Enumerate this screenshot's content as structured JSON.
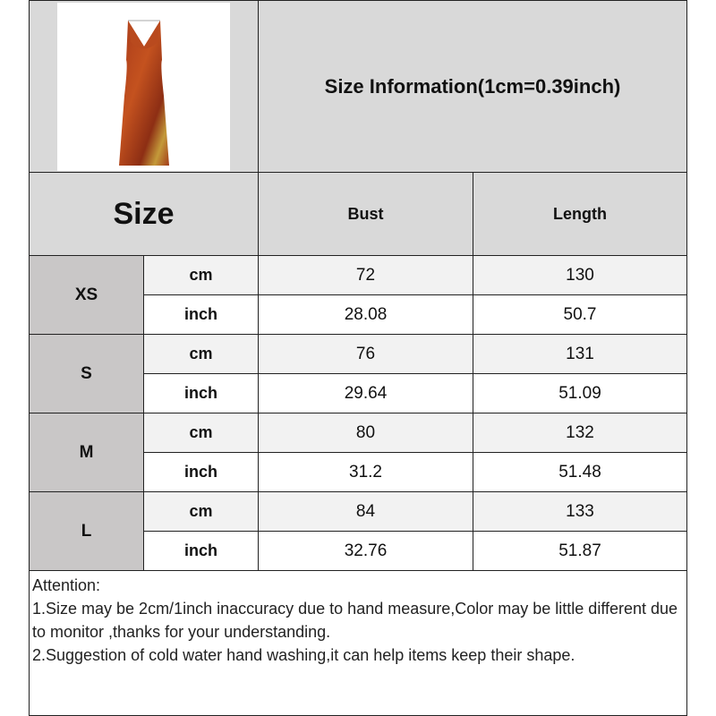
{
  "title": "Size Information(1cm=0.39inch)",
  "product_image": {
    "description_icon": "dress-image",
    "color": "#b8461e"
  },
  "table": {
    "size_header": "Size",
    "columns": [
      "Bust",
      "Length"
    ],
    "rows": [
      {
        "size": "XS",
        "cm_label": "cm",
        "inch_label": "inch",
        "cm": [
          "72",
          "130"
        ],
        "inch": [
          "28.08",
          "50.7"
        ]
      },
      {
        "size": "S",
        "cm_label": "cm",
        "inch_label": "inch",
        "cm": [
          "76",
          "131"
        ],
        "inch": [
          "29.64",
          "51.09"
        ]
      },
      {
        "size": "M",
        "cm_label": "cm",
        "inch_label": "inch",
        "cm": [
          "80",
          "132"
        ],
        "inch": [
          "31.2",
          "51.48"
        ]
      },
      {
        "size": "L",
        "cm_label": "cm",
        "inch_label": "inch",
        "cm": [
          "84",
          "133"
        ],
        "inch": [
          "32.76",
          "51.87"
        ]
      }
    ]
  },
  "notes": {
    "heading": "Attention:",
    "lines": [
      "1.Size may be 2cm/1inch inaccuracy due to hand measure,Color may be little different due to monitor ,thanks for your understanding.",
      "2.Suggestion of cold water hand washing,it can help items keep their shape."
    ]
  }
}
